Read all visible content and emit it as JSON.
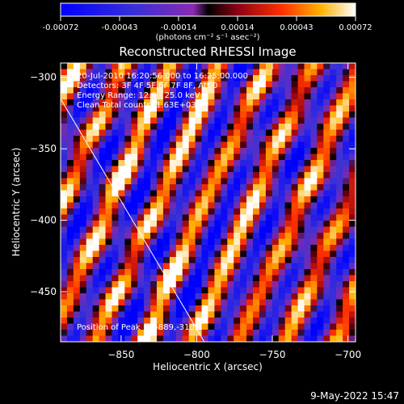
{
  "colorbar": {
    "ticks": [
      "-0.00072",
      "-0.00043",
      "-0.00014",
      "0.00014",
      "0.00043",
      "0.00072"
    ],
    "unit_label": "(photons cm⁻² s⁻¹ asec⁻²)"
  },
  "chart_data": {
    "type": "heatmap",
    "title": "Reconstructed RHESSI Image",
    "xlabel": "Heliocentric X (arcsec)",
    "ylabel": "Heliocentric Y (arcsec)",
    "xlim": [
      -890,
      -695
    ],
    "ylim": [
      -485,
      -290
    ],
    "xticks": [
      -850,
      -800,
      -750,
      -700
    ],
    "yticks": [
      -300,
      -350,
      -400,
      -450
    ],
    "zlim": [
      -0.00072,
      0.00072
    ],
    "colormap": "blue-purple-red-yellow-white",
    "info_lines": [
      "20-Jul-2010 16:20:56.000 to 16:25:00.000",
      "Detectors: 3F 4F 5F 6F 7F 8F, Att 0",
      "Energy Range: 12.0 - 25.0 keV",
      "Clean    Total counts: 1.63E+03"
    ],
    "peak_label": "Position of Peak = [-889,-318]",
    "peak": [
      -889,
      -318
    ],
    "limb_line": [
      [
        -890,
        -315
      ],
      [
        -795,
        -485
      ]
    ]
  },
  "footer": {
    "date": "9-May-2022 15:47"
  }
}
